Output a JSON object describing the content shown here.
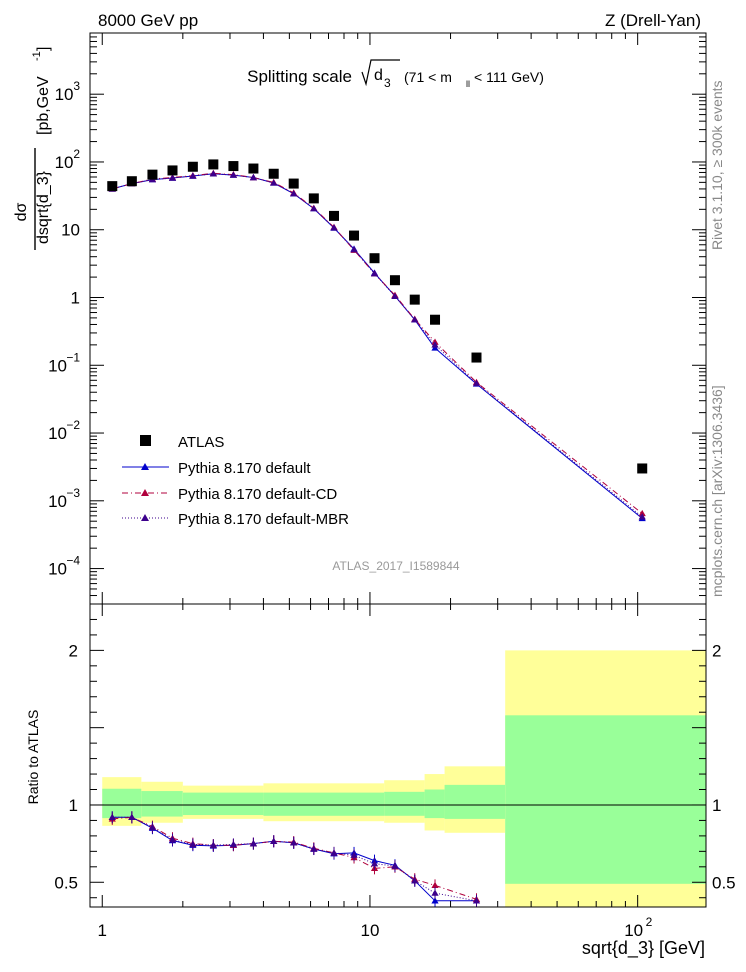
{
  "header": {
    "left": "8000 GeV pp",
    "right": "Z (Drell-Yan)"
  },
  "title": {
    "prefix": "Splitting scale",
    "sqrt_symbol": "√",
    "variable": "d",
    "variable_sub": "3",
    "range_prefix": "(71 < m",
    "range_sub": "ll",
    "range_suffix": " < 111 GeV)"
  },
  "side_labels": {
    "rivet": "Rivet 3.1.10, ≥ 300k events",
    "mcplots": "mcplots.cern.ch [arXiv:1306.3436]"
  },
  "watermark": "ATLAS_2017_I1589844",
  "axes": {
    "ylabel_num": "dσ",
    "ylabel_den": "dsqrt{d_3}",
    "ylabel_unit": "[pb,GeV",
    "ylabel_unit_exp": "-1",
    "ylabel_unit_close": "]",
    "ratio_ylabel": "Ratio to ATLAS",
    "xlabel": "sqrt{d_3} [GeV]",
    "x_ticks": [
      {
        "base": "1",
        "exp": ""
      },
      {
        "base": "10",
        "exp": ""
      },
      {
        "base": "10",
        "exp": "2"
      }
    ],
    "y_ticks_main": [
      {
        "base": "10",
        "exp": "3"
      },
      {
        "base": "10",
        "exp": "2"
      },
      {
        "base": "10",
        "exp": ""
      },
      {
        "base": "1",
        "exp": ""
      },
      {
        "base": "10",
        "exp": "−1"
      },
      {
        "base": "10",
        "exp": "−2"
      },
      {
        "base": "10",
        "exp": "−3"
      },
      {
        "base": "10",
        "exp": "−4"
      }
    ],
    "y_ticks_ratio": [
      "2",
      "1",
      "0.5"
    ]
  },
  "legend": [
    {
      "label": "ATLAS",
      "style": "data"
    },
    {
      "label": "Pythia 8.170 default",
      "style": "solid"
    },
    {
      "label": "Pythia 8.170 default-CD",
      "style": "dashdot"
    },
    {
      "label": "Pythia 8.170 default-MBR",
      "style": "dotted"
    }
  ],
  "colors": {
    "data": "#000000",
    "default": "#0000cc",
    "cd": "#b0003c",
    "mbr": "#3c008c",
    "band_stat": "#99ff99",
    "band_total": "#ffff99"
  },
  "chart_data": {
    "type": "scatter",
    "x_scale": "log",
    "y_scale": "log",
    "xlim": [
      0.9,
      180
    ],
    "ylim": [
      3e-05,
      8000
    ],
    "ratio_ylim": [
      0.34,
      2.3
    ],
    "bin_edges": [
      1,
      1.18,
      1.4,
      1.68,
      2.0,
      2.38,
      2.83,
      3.36,
      4.0,
      4.76,
      5.66,
      6.73,
      8.0,
      9.51,
      11.3,
      13.5,
      16.0,
      19.0,
      32.0,
      180
    ],
    "x": [
      1.09,
      1.29,
      1.54,
      1.83,
      2.18,
      2.6,
      3.09,
      3.67,
      4.37,
      5.19,
      6.17,
      7.34,
      8.72,
      10.4,
      12.4,
      14.7,
      17.5,
      25.0,
      104.0
    ],
    "series": [
      {
        "name": "ATLAS",
        "values": [
          44,
          52,
          65,
          75,
          85,
          92,
          87,
          80,
          67,
          48,
          29,
          16,
          8.2,
          3.8,
          1.8,
          0.93,
          0.47,
          0.13,
          0.003
        ]
      },
      {
        "name": "Pythia 8.170 default",
        "values": [
          40,
          48,
          55,
          58,
          62,
          67,
          64,
          59,
          49,
          34,
          20.5,
          10.6,
          5.2,
          2.3,
          1.05,
          0.47,
          0.18,
          0.053,
          0.00055
        ],
        "ratio": [
          0.92,
          0.92,
          0.85,
          0.77,
          0.74,
          0.735,
          0.74,
          0.75,
          0.765,
          0.755,
          0.715,
          0.685,
          0.69,
          0.64,
          0.61,
          0.51,
          0.38,
          0.38,
          null
        ]
      },
      {
        "name": "Pythia 8.170 default-CD",
        "values": [
          40,
          48,
          56,
          59,
          63,
          68,
          65,
          59,
          50,
          35,
          20.8,
          10.9,
          5.0,
          2.25,
          1.08,
          0.48,
          0.22,
          0.056,
          0.00065
        ],
        "ratio": [
          0.91,
          0.92,
          0.86,
          0.785,
          0.75,
          0.74,
          0.74,
          0.75,
          0.765,
          0.76,
          0.72,
          0.69,
          0.66,
          0.59,
          0.6,
          0.52,
          0.48,
          0.39,
          null
        ]
      },
      {
        "name": "Pythia 8.170 default-MBR",
        "values": [
          40,
          48,
          55,
          58,
          62,
          67,
          64,
          59,
          49,
          34,
          20.5,
          10.7,
          5.1,
          2.25,
          1.04,
          0.47,
          0.2,
          0.054,
          0.00058
        ],
        "ratio": [
          0.92,
          0.92,
          0.855,
          0.775,
          0.745,
          0.74,
          0.745,
          0.75,
          0.765,
          0.755,
          0.715,
          0.69,
          0.675,
          0.62,
          0.605,
          0.51,
          0.43,
          0.38,
          null
        ]
      }
    ],
    "ratio_bands": [
      {
        "x1": 1.0,
        "x2": 1.4,
        "stat": [
          0.915,
          1.105
        ],
        "total": [
          0.865,
          1.18
        ]
      },
      {
        "x1": 1.4,
        "x2": 2.0,
        "stat": [
          0.925,
          1.09
        ],
        "total": [
          0.885,
          1.15
        ]
      },
      {
        "x1": 2.0,
        "x2": 4.0,
        "stat": [
          0.935,
          1.08
        ],
        "total": [
          0.91,
          1.125
        ]
      },
      {
        "x1": 4.0,
        "x2": 11.3,
        "stat": [
          0.93,
          1.08
        ],
        "total": [
          0.895,
          1.14
        ]
      },
      {
        "x1": 11.3,
        "x2": 16.0,
        "stat": [
          0.93,
          1.085
        ],
        "total": [
          0.885,
          1.16
        ]
      },
      {
        "x1": 16.0,
        "x2": 19.0,
        "stat": [
          0.915,
          1.1
        ],
        "total": [
          0.835,
          1.2
        ]
      },
      {
        "x1": 19.0,
        "x2": 32.0,
        "stat": [
          0.91,
          1.13
        ],
        "total": [
          0.82,
          1.25
        ]
      },
      {
        "x1": 32.0,
        "x2": 180,
        "stat": [
          0.49,
          1.58
        ],
        "total": [
          0.2,
          2.0
        ]
      }
    ]
  }
}
